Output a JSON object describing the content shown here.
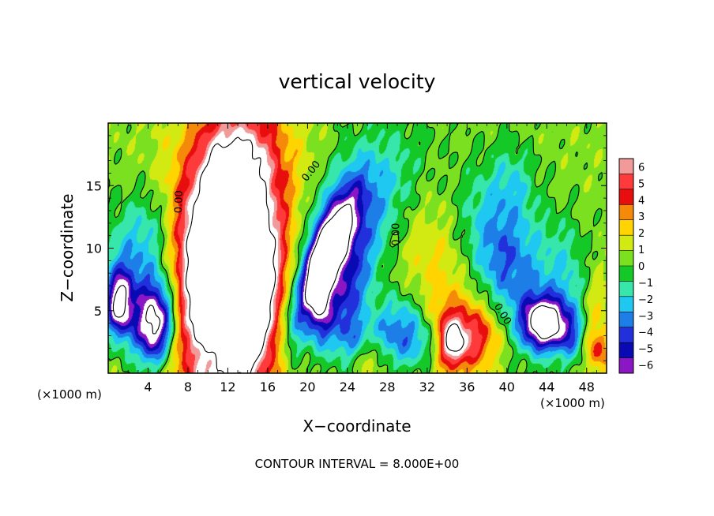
{
  "chart_data": {
    "type": "heatmap",
    "title": "vertical velocity",
    "xlabel": "X−coordinate",
    "ylabel": "Z−coordinate",
    "x_unit_left": "(×1000 m)",
    "x_unit_right": "(×1000 m)",
    "xlim": [
      0,
      50
    ],
    "ylim": [
      0,
      20
    ],
    "x_ticks": [
      4,
      8,
      12,
      16,
      20,
      24,
      28,
      32,
      36,
      40,
      44,
      48
    ],
    "y_ticks": [
      5,
      10,
      15
    ],
    "footer": "CONTOUR INTERVAL = 8.000E+00",
    "colorbar": {
      "levels": [
        6,
        5,
        4,
        3,
        2,
        1,
        0,
        -1,
        -2,
        -3,
        -4,
        -5,
        -6
      ],
      "colors": [
        "#f09a9a",
        "#ff3a3a",
        "#e80e0e",
        "#f58a0a",
        "#ffd400",
        "#d2ea12",
        "#7ae020",
        "#14c828",
        "#36e6aa",
        "#1ec8f0",
        "#1e7ee8",
        "#2230dc",
        "#0a0ab4",
        "#8a16c4"
      ]
    },
    "contour_labels": [
      {
        "text": "0.00",
        "x": 7.4,
        "y": 13.7,
        "rotate": -88
      },
      {
        "text": "0.00",
        "x": 20.6,
        "y": 16.0,
        "rotate": -52
      },
      {
        "text": "0.00",
        "x": 29.2,
        "y": 11.1,
        "rotate": -90
      },
      {
        "text": "0.00",
        "x": 39.3,
        "y": 4.6,
        "rotate": 58
      }
    ],
    "field": {
      "background": 0.6,
      "features": [
        {
          "x": 12.3,
          "y": 8.2,
          "sx": 3.5,
          "sy": 8.0,
          "a": 13,
          "rot": 0.06
        },
        {
          "x": 11.2,
          "y": 11.5,
          "sx": 2.2,
          "sy": 3.0,
          "a": 3,
          "rot": 0
        },
        {
          "x": 14.8,
          "y": 6.5,
          "sx": 2.0,
          "sy": 4.0,
          "a": 3,
          "rot": 0
        },
        {
          "x": 8.8,
          "y": 7.0,
          "sx": 1.5,
          "sy": 4.5,
          "a": 2,
          "rot": 0
        },
        {
          "x": 13.0,
          "y": 17.5,
          "sx": 3.0,
          "sy": 2.0,
          "a": 2,
          "rot": 0
        },
        {
          "x": 4.7,
          "y": 3.8,
          "sx": 1.4,
          "sy": 2.2,
          "a": -9,
          "rot": 0.1
        },
        {
          "x": 3.5,
          "y": 7.0,
          "sx": 2.5,
          "sy": 3.0,
          "a": -3,
          "rot": 0
        },
        {
          "x": 1.1,
          "y": 5.5,
          "sx": 0.9,
          "sy": 1.8,
          "a": -8,
          "rot": 0
        },
        {
          "x": 1.8,
          "y": 10.0,
          "sx": 2.0,
          "sy": 3.0,
          "a": -1.5,
          "rot": 0
        },
        {
          "x": 4.5,
          "y": 12.0,
          "sx": 1.5,
          "sy": 2.0,
          "a": -1.5,
          "rot": 0
        },
        {
          "x": 21.8,
          "y": 9.5,
          "sx": 1.0,
          "sy": 3.4,
          "a": -8,
          "rot": 0.5
        },
        {
          "x": 21.0,
          "y": 8.0,
          "sx": 1.8,
          "sy": 5.0,
          "a": -3,
          "rot": 0.4
        },
        {
          "x": 23.5,
          "y": 11.5,
          "sx": 2.5,
          "sy": 5.0,
          "a": -3,
          "rot": 0.45
        },
        {
          "x": 26.5,
          "y": 12.0,
          "sx": 2.5,
          "sy": 5.5,
          "a": -2.5,
          "rot": 0.5
        },
        {
          "x": 21.3,
          "y": 5.5,
          "sx": 0.8,
          "sy": 2.0,
          "a": -5,
          "rot": 0
        },
        {
          "x": 24.0,
          "y": 6.0,
          "sx": 1.2,
          "sy": 2.5,
          "a": -3,
          "rot": 0.3
        },
        {
          "x": 25.5,
          "y": 2.5,
          "sx": 1.8,
          "sy": 1.5,
          "a": -4,
          "rot": 0
        },
        {
          "x": 26.2,
          "y": 1.6,
          "sx": 1.1,
          "sy": 1.3,
          "a": 3.5,
          "rot": 0
        },
        {
          "x": 28.5,
          "y": 4.0,
          "sx": 1.5,
          "sy": 2.0,
          "a": -1.5,
          "rot": 0
        },
        {
          "x": 30.0,
          "y": 3.0,
          "sx": 1.5,
          "sy": 2.0,
          "a": -3.5,
          "rot": 0
        },
        {
          "x": 32.0,
          "y": 2.5,
          "sx": 1.0,
          "sy": 1.5,
          "a": -2.5,
          "rot": 0
        },
        {
          "x": 35.0,
          "y": 3.0,
          "sx": 2.5,
          "sy": 2.4,
          "a": 4.5,
          "rot": 0
        },
        {
          "x": 34.6,
          "y": 2.6,
          "sx": 0.8,
          "sy": 1.2,
          "a": 5,
          "rot": 0
        },
        {
          "x": 37.5,
          "y": 3.0,
          "sx": 1.5,
          "sy": 1.5,
          "a": 2,
          "rot": 0
        },
        {
          "x": 30.5,
          "y": 10.5,
          "sx": 3.0,
          "sy": 3.0,
          "a": 1.2,
          "rot": 0
        },
        {
          "x": 33.5,
          "y": 8.5,
          "sx": 1.5,
          "sy": 2.0,
          "a": 0.8,
          "rot": 0
        },
        {
          "x": 43.8,
          "y": 4.0,
          "sx": 1.5,
          "sy": 1.4,
          "a": -10,
          "rot": 0
        },
        {
          "x": 41.5,
          "y": 8.5,
          "sx": 2.5,
          "sy": 5.0,
          "a": -3,
          "rot": -0.25
        },
        {
          "x": 38.5,
          "y": 10.0,
          "sx": 2.0,
          "sy": 4.0,
          "a": -2.5,
          "rot": -0.3
        },
        {
          "x": 40.5,
          "y": 15.5,
          "sx": 1.5,
          "sy": 2.0,
          "a": -1.5,
          "rot": 0
        },
        {
          "x": 46.0,
          "y": 8.0,
          "sx": 1.5,
          "sy": 3.0,
          "a": -2,
          "rot": 0
        },
        {
          "x": 46.5,
          "y": 3.0,
          "sx": 1.0,
          "sy": 1.5,
          "a": -3,
          "rot": 0
        },
        {
          "x": 49.1,
          "y": 1.8,
          "sx": 0.9,
          "sy": 1.2,
          "a": 3.5,
          "rot": 0
        },
        {
          "x": 49.0,
          "y": 5.0,
          "sx": 1.0,
          "sy": 2.0,
          "a": 1.5,
          "rot": 0
        },
        {
          "x": 10.0,
          "y": 1.5,
          "sx": 1.5,
          "sy": 1.0,
          "a": -1.5,
          "rot": 0
        },
        {
          "x": 18.5,
          "y": 3.5,
          "sx": 1.0,
          "sy": 2.0,
          "a": -1.5,
          "rot": 0
        }
      ]
    }
  }
}
